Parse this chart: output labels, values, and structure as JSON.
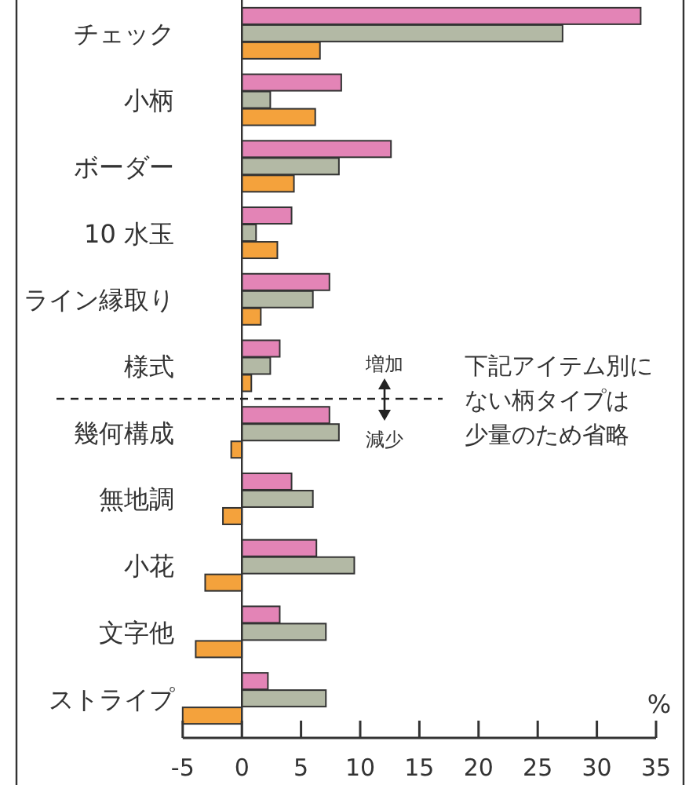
{
  "chart_data": {
    "type": "bar",
    "orientation": "horizontal",
    "categories": [
      "チェック",
      "小柄",
      "ボーダー",
      "10 水玉",
      "ライン縁取り",
      "様式",
      "幾何構成",
      "無地調",
      "小花",
      "文字他",
      "ストライプ"
    ],
    "series": [
      {
        "color": "#e384b6",
        "values": [
          33.7,
          8.4,
          12.6,
          4.2,
          7.4,
          3.2,
          7.4,
          4.2,
          6.3,
          3.2,
          2.2
        ]
      },
      {
        "color": "#b3b9a5",
        "values": [
          27.1,
          2.4,
          8.2,
          1.2,
          6.0,
          2.4,
          8.2,
          6.0,
          9.5,
          7.1,
          7.1
        ]
      },
      {
        "color": "#f4a23c",
        "values": [
          6.6,
          6.2,
          4.4,
          3.0,
          1.6,
          0.8,
          -0.9,
          -1.6,
          -3.1,
          -3.9,
          -5.0
        ]
      }
    ],
    "xlim": [
      -5,
      35
    ],
    "xticks": [
      -5,
      0,
      5,
      10,
      15,
      20,
      25,
      30,
      35
    ],
    "xlabel": "%",
    "legend": false,
    "annotations": [
      "増加",
      "減少",
      "下記アイテム別に",
      "ない柄タイプは",
      "少量のため省略"
    ]
  }
}
